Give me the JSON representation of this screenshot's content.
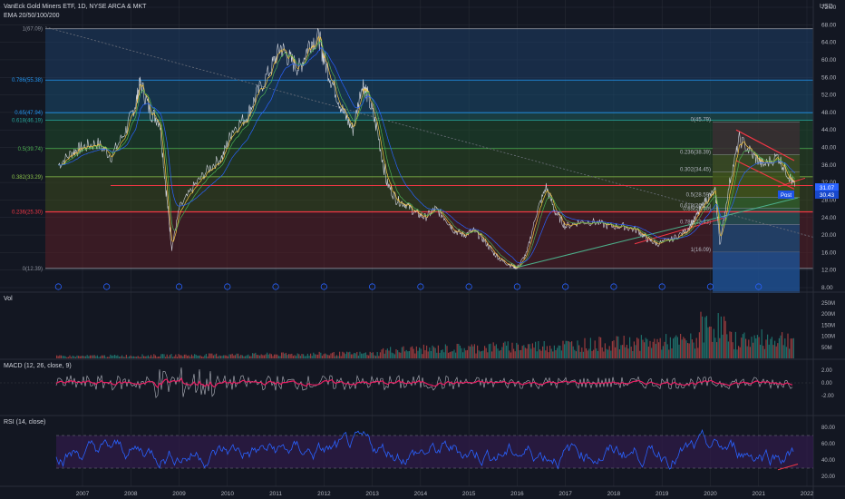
{
  "header": {
    "symbol_title": "VanEck Gold Miners ETF, 1D, NYSE ARCA & MKT",
    "indicator": "EMA 20/50/100/200",
    "currency": "USD"
  },
  "colors": {
    "background": "#131722",
    "grid": "#2a2e39",
    "price": "#cfd3dc",
    "ema_fast": "#f5c542",
    "ema_slow": "#2962ff",
    "trendline": "#f23645",
    "support": "#4caf8a",
    "fib_red": "#5a1f27",
    "fib_green": "#1f4a2a",
    "fib_blue": "#1e3e66",
    "volume_up": "#26a69a",
    "volume_down": "#ef5350",
    "macd": "#b2b5be",
    "macd_signal": "#e91e63",
    "rsi": "#2962ff",
    "rsi_band": "#311b4a"
  },
  "fib_levels_left": [
    {
      "label": "1(67.09)",
      "value": 67.09
    },
    {
      "label": "0.786(55.38)",
      "value": 55.38
    },
    {
      "label": "0.65(47.94)",
      "value": 47.94
    },
    {
      "label": "0.618(46.19)",
      "value": 46.19
    },
    {
      "label": "0.5(39.74)",
      "value": 39.74
    },
    {
      "label": "0.382(33.29)",
      "value": 33.29
    },
    {
      "label": "0.236(25.30)",
      "value": 25.3
    },
    {
      "label": "0(12.39)",
      "value": 12.39
    }
  ],
  "fib_levels_right": [
    {
      "label": "0(45.79)",
      "value": 45.79
    },
    {
      "label": "0.236(38.39)",
      "value": 38.39
    },
    {
      "label": "0.302(34.45)",
      "value": 34.45
    },
    {
      "label": "0.5(28.59)",
      "value": 28.59
    },
    {
      "label": "0.618(26.12)",
      "value": 26.12
    },
    {
      "label": "0.65(25.40)",
      "value": 25.4
    },
    {
      "label": "0.786(22.43)",
      "value": 22.43
    },
    {
      "label": "1(16.09)",
      "value": 16.09
    }
  ],
  "price_tags": {
    "current": "31.07",
    "other": "30.43",
    "post_label": "Post"
  },
  "price_axis": [
    "72.00",
    "68.00",
    "64.00",
    "60.00",
    "56.00",
    "52.00",
    "48.00",
    "44.00",
    "40.00",
    "36.00",
    "32.00",
    "28.00",
    "24.00",
    "20.00",
    "16.00",
    "12.00",
    "8.00"
  ],
  "volume_axis": [
    "250M",
    "200M",
    "150M",
    "100M",
    "50M"
  ],
  "macd_axis": [
    "2.00",
    "0.00",
    "-2.00"
  ],
  "rsi_axis": [
    "80.00",
    "60.00",
    "40.00",
    "20.00"
  ],
  "time_axis": [
    "2007",
    "2008",
    "2009",
    "2010",
    "2011",
    "2012",
    "2013",
    "2014",
    "2015",
    "2016",
    "2017",
    "2018",
    "2019",
    "2020",
    "2021",
    "2022"
  ],
  "panes": {
    "volume_title": "Vol",
    "macd_title": "MACD (12, 26, close, 9)",
    "rsi_title": "RSI (14, close)"
  },
  "chart_data": {
    "type": "line",
    "title": "VanEck Gold Miners ETF, 1D, NYSE ARCA & MKT",
    "xlabel": "",
    "ylabel": "USD",
    "ylim": [
      8,
      72
    ],
    "x": [
      2006.5,
      2006.8,
      2007.0,
      2007.3,
      2007.6,
      2007.9,
      2008.1,
      2008.2,
      2008.4,
      2008.6,
      2008.75,
      2008.85,
      2009.0,
      2009.3,
      2009.6,
      2009.9,
      2010.1,
      2010.4,
      2010.6,
      2010.9,
      2011.1,
      2011.3,
      2011.5,
      2011.7,
      2011.9,
      2012.0,
      2012.2,
      2012.4,
      2012.6,
      2012.8,
      2012.9,
      2013.1,
      2013.3,
      2013.5,
      2013.7,
      2013.9,
      2014.1,
      2014.3,
      2014.5,
      2014.7,
      2014.9,
      2015.1,
      2015.3,
      2015.5,
      2015.7,
      2015.9,
      2016.0,
      2016.2,
      2016.4,
      2016.6,
      2016.8,
      2017.0,
      2017.3,
      2017.6,
      2017.9,
      2018.2,
      2018.5,
      2018.7,
      2018.9,
      2019.2,
      2019.5,
      2019.7,
      2019.9,
      2020.1,
      2020.2,
      2020.4,
      2020.6,
      2020.9,
      2021.1,
      2021.4,
      2021.6,
      2021.75
    ],
    "series": [
      {
        "values": [
          36,
          39,
          40,
          41,
          38,
          44,
          50,
          55,
          48,
          46,
          28,
          17,
          26,
          31,
          35,
          38,
          44,
          47,
          52,
          58,
          63,
          60,
          58,
          64,
          65,
          60,
          54,
          48,
          44,
          55,
          52,
          44,
          32,
          28,
          27,
          25,
          24,
          26,
          24,
          21,
          20,
          21,
          19,
          16,
          14,
          13,
          12.5,
          16,
          25,
          31,
          25,
          22,
          23,
          23,
          22,
          22,
          21,
          19,
          18,
          19,
          21,
          24,
          28,
          30,
          18,
          32,
          42,
          38,
          36,
          38,
          34,
          31.07
        ]
      }
    ]
  }
}
